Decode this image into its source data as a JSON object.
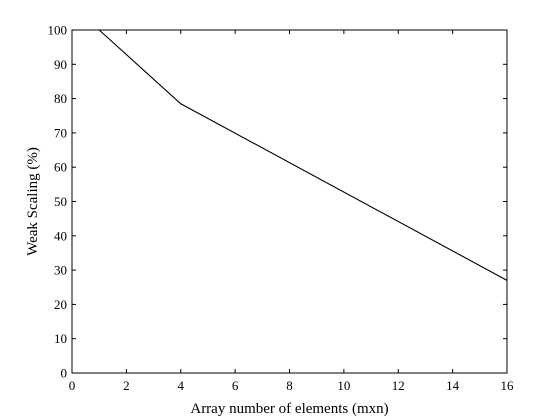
{
  "chart_data": {
    "type": "line",
    "title": "",
    "xlabel": "Array number of elements (mxn)",
    "ylabel": "Weak Scaling (%)",
    "xlim": [
      0,
      16
    ],
    "ylim": [
      0,
      100
    ],
    "xticks": [
      0,
      2,
      4,
      6,
      8,
      10,
      12,
      14,
      16
    ],
    "yticks": [
      0,
      10,
      20,
      30,
      40,
      50,
      60,
      70,
      80,
      90,
      100
    ],
    "grid": false,
    "series": [
      {
        "x": [
          1,
          4,
          16
        ],
        "y": [
          100,
          78.5,
          27
        ],
        "color": "#000000"
      }
    ]
  }
}
